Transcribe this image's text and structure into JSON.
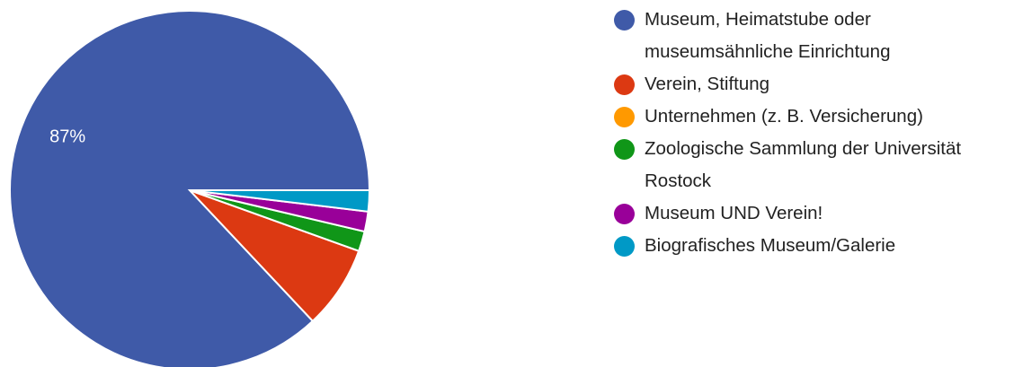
{
  "chart_data": {
    "type": "pie",
    "slices": [
      {
        "label": "Museum, Heimatstube oder museumsähnliche Einrichtung",
        "value": 87,
        "color": "#3f5aa8"
      },
      {
        "label": "Verein, Stiftung",
        "value": 7.5,
        "color": "#dc3912"
      },
      {
        "label": "Unternehmen (z. B. Versicherung)",
        "value": 0,
        "color": "#ff9900"
      },
      {
        "label": "Zoologische Sammlung der Universität Rostock",
        "value": 1.8,
        "color": "#109618"
      },
      {
        "label": "Museum UND Verein!",
        "value": 1.8,
        "color": "#990099"
      },
      {
        "label": "Biografisches Museum/Galerie",
        "value": 1.9,
        "color": "#0099c6"
      }
    ],
    "data_labels": [
      "87%",
      "",
      "",
      "",
      "",
      ""
    ],
    "legend_position": "right"
  }
}
